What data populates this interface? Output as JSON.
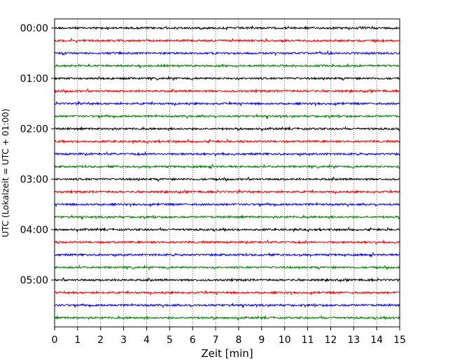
{
  "chart_data": {
    "type": "line",
    "title": "",
    "xlabel": "Zeit  [min]",
    "ylabel": "UTC (Lokalzeit = UTC + 01:00)",
    "xlim": [
      0,
      15
    ],
    "x_ticks": [
      "0",
      "1",
      "2",
      "3",
      "4",
      "5",
      "6",
      "7",
      "8",
      "9",
      "10",
      "11",
      "12",
      "13",
      "14",
      "15"
    ],
    "y_tick_labels": [
      "00:00",
      "01:00",
      "02:00",
      "03:00",
      "04:00",
      "05:00"
    ],
    "trace_interval_min": 15,
    "grid": "vertical dotted",
    "trace_colors": [
      "#000000",
      "#ff0000",
      "#0000ff",
      "#008000"
    ],
    "traces": [
      {
        "start": "00:00",
        "color": "#000000"
      },
      {
        "start": "00:15",
        "color": "#ff0000"
      },
      {
        "start": "00:30",
        "color": "#0000ff"
      },
      {
        "start": "00:45",
        "color": "#008000"
      },
      {
        "start": "01:00",
        "color": "#000000"
      },
      {
        "start": "01:15",
        "color": "#ff0000"
      },
      {
        "start": "01:30",
        "color": "#0000ff"
      },
      {
        "start": "01:45",
        "color": "#008000"
      },
      {
        "start": "02:00",
        "color": "#000000"
      },
      {
        "start": "02:15",
        "color": "#ff0000"
      },
      {
        "start": "02:30",
        "color": "#0000ff"
      },
      {
        "start": "02:45",
        "color": "#008000"
      },
      {
        "start": "03:00",
        "color": "#000000"
      },
      {
        "start": "03:15",
        "color": "#ff0000"
      },
      {
        "start": "03:30",
        "color": "#0000ff"
      },
      {
        "start": "03:45",
        "color": "#008000"
      },
      {
        "start": "04:00",
        "color": "#000000"
      },
      {
        "start": "04:15",
        "color": "#ff0000"
      },
      {
        "start": "04:30",
        "color": "#0000ff"
      },
      {
        "start": "04:45",
        "color": "#008000"
      },
      {
        "start": "05:00",
        "color": "#000000"
      },
      {
        "start": "05:15",
        "color": "#ff0000"
      },
      {
        "start": "05:30",
        "color": "#0000ff"
      },
      {
        "start": "05:45",
        "color": "#008000"
      }
    ]
  }
}
